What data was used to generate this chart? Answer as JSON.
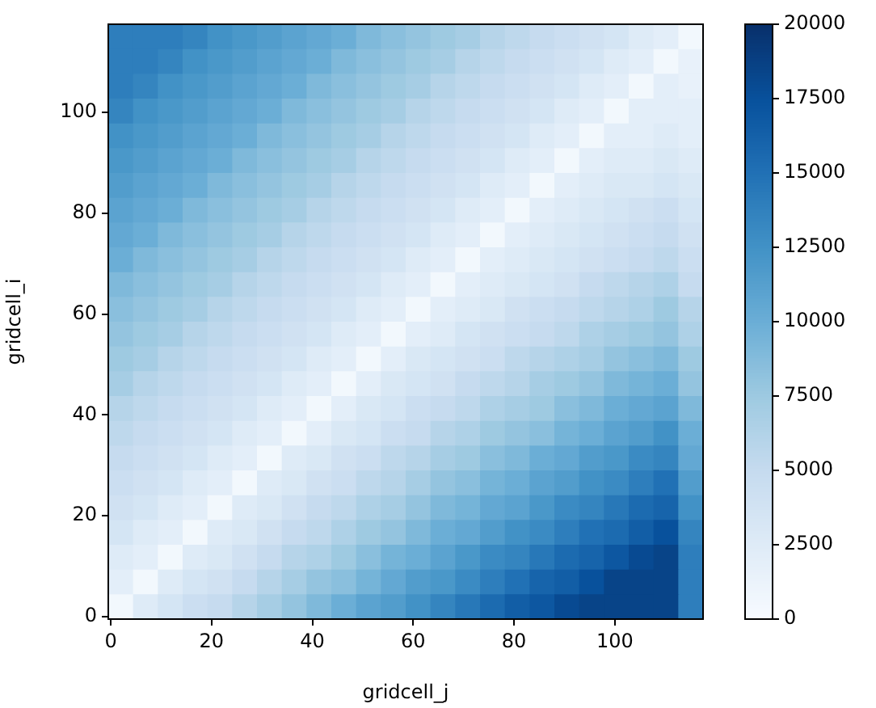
{
  "chart_data": {
    "type": "heatmap",
    "xlabel": "gridcell_j",
    "ylabel": "gridcell_i",
    "xlim": [
      -0.5,
      117.5
    ],
    "ylim": [
      -0.5,
      117.5
    ],
    "xticks": [
      0,
      20,
      40,
      60,
      80,
      100
    ],
    "yticks": [
      0,
      20,
      40,
      60,
      80,
      100
    ],
    "clim": [
      0,
      20000
    ],
    "cticks": [
      0,
      2500,
      5000,
      7500,
      10000,
      12500,
      15000,
      17500,
      20000
    ],
    "cells": [
      [
        14000,
        14000,
        14000,
        13500,
        12500,
        12000,
        11500,
        11000,
        10500,
        10000,
        9000,
        8500,
        8000,
        7500,
        7000,
        6000,
        5500,
        5000,
        4500,
        4000,
        3500,
        2500,
        2000,
        500
      ],
      [
        14000,
        14000,
        13500,
        12500,
        12000,
        11500,
        11000,
        10500,
        10000,
        9000,
        8500,
        8000,
        7500,
        7000,
        6000,
        5500,
        5000,
        4500,
        4000,
        3500,
        2500,
        2000,
        500,
        1500
      ],
      [
        14000,
        13500,
        12500,
        12000,
        11500,
        11000,
        10500,
        10000,
        9000,
        8500,
        8000,
        7500,
        7000,
        6000,
        5500,
        5000,
        4500,
        4000,
        3500,
        2500,
        2000,
        500,
        2000,
        1500
      ],
      [
        13500,
        12500,
        12000,
        11500,
        11000,
        10500,
        10000,
        9000,
        8500,
        8000,
        7500,
        7000,
        6000,
        5500,
        5000,
        4500,
        4000,
        3500,
        2500,
        2000,
        500,
        2000,
        2000,
        2000
      ],
      [
        12500,
        12000,
        11500,
        11000,
        10500,
        10000,
        9000,
        8500,
        8000,
        7500,
        7000,
        6000,
        5500,
        5000,
        4500,
        4000,
        3500,
        2500,
        2000,
        500,
        2000,
        2000,
        2500,
        2000
      ],
      [
        12000,
        11500,
        11000,
        10500,
        10000,
        9000,
        8500,
        8000,
        7500,
        7000,
        6000,
        5500,
        5000,
        4500,
        4000,
        3500,
        2500,
        2000,
        500,
        2000,
        2500,
        2500,
        3000,
        2500
      ],
      [
        11500,
        11000,
        10500,
        10000,
        9000,
        8500,
        8000,
        7500,
        7000,
        6000,
        5500,
        5000,
        4500,
        4000,
        3500,
        2500,
        2000,
        500,
        2000,
        2500,
        3000,
        3000,
        3500,
        3000
      ],
      [
        11000,
        10500,
        10000,
        9000,
        8500,
        8000,
        7500,
        7000,
        6000,
        5500,
        5000,
        4500,
        4000,
        3500,
        2500,
        2000,
        500,
        2000,
        2500,
        3000,
        3500,
        4000,
        4500,
        3500
      ],
      [
        10500,
        10000,
        9000,
        8500,
        8000,
        7500,
        7000,
        6000,
        5500,
        5000,
        4500,
        4000,
        3500,
        2500,
        2000,
        500,
        2000,
        2500,
        3000,
        3500,
        4000,
        4500,
        5000,
        4000
      ],
      [
        10000,
        9000,
        8500,
        8000,
        7500,
        7000,
        6000,
        5500,
        5000,
        4500,
        4000,
        3500,
        2500,
        2000,
        500,
        2000,
        2500,
        3000,
        3500,
        4000,
        4500,
        5000,
        5500,
        4500
      ],
      [
        9000,
        8500,
        8000,
        7500,
        7000,
        6000,
        5500,
        5000,
        4500,
        4000,
        3500,
        2500,
        2000,
        500,
        2000,
        2500,
        3000,
        3500,
        4000,
        5000,
        5500,
        6000,
        6500,
        5000
      ],
      [
        8500,
        8000,
        7500,
        7000,
        6000,
        5500,
        5000,
        4500,
        4000,
        3500,
        2500,
        2000,
        500,
        2000,
        2500,
        3000,
        4000,
        4500,
        5000,
        5500,
        6000,
        6500,
        7500,
        6000
      ],
      [
        8000,
        7500,
        7000,
        6000,
        5500,
        5000,
        4500,
        4000,
        3500,
        2500,
        2000,
        500,
        2000,
        2500,
        3500,
        4000,
        4500,
        5000,
        5500,
        6500,
        7000,
        7500,
        8000,
        6500
      ],
      [
        7500,
        7000,
        6000,
        5500,
        5000,
        4500,
        4000,
        3500,
        2500,
        2000,
        500,
        2000,
        3000,
        3500,
        4000,
        4500,
        5500,
        6000,
        6500,
        7000,
        8000,
        8500,
        9000,
        7500
      ],
      [
        7000,
        6000,
        5500,
        5000,
        4500,
        4000,
        3500,
        2500,
        2000,
        500,
        2000,
        3000,
        3500,
        4000,
        5000,
        5500,
        6000,
        7000,
        7500,
        8000,
        9000,
        9500,
        10000,
        8000
      ],
      [
        6000,
        5500,
        5000,
        4500,
        4000,
        3500,
        2500,
        2000,
        500,
        2000,
        3000,
        3500,
        4500,
        5000,
        5500,
        6500,
        7000,
        7500,
        8500,
        9000,
        10000,
        10500,
        11000,
        9000
      ],
      [
        5500,
        5000,
        4500,
        4000,
        3500,
        2500,
        2000,
        500,
        2000,
        3000,
        3500,
        4500,
        5000,
        6000,
        6500,
        7500,
        8000,
        8500,
        9500,
        10000,
        11000,
        11500,
        12500,
        10000
      ],
      [
        5000,
        4500,
        4000,
        3500,
        2500,
        2000,
        500,
        2500,
        3000,
        4000,
        4500,
        5500,
        6000,
        7000,
        7500,
        8500,
        9000,
        10000,
        10500,
        11500,
        12000,
        13000,
        13500,
        10500
      ],
      [
        4500,
        4000,
        3500,
        2500,
        2000,
        500,
        2500,
        3000,
        4000,
        4500,
        5500,
        6000,
        7000,
        8000,
        8500,
        9500,
        10000,
        11000,
        11500,
        12500,
        13000,
        14000,
        15000,
        11500
      ],
      [
        4000,
        3500,
        2500,
        2000,
        500,
        2500,
        3000,
        4000,
        5000,
        5500,
        6500,
        7000,
        8000,
        9000,
        9500,
        10500,
        11000,
        12000,
        13000,
        13500,
        14500,
        15500,
        16000,
        12500
      ],
      [
        3500,
        2500,
        2000,
        500,
        2500,
        3000,
        4000,
        5000,
        5500,
        6500,
        7500,
        8000,
        9000,
        10000,
        10500,
        11500,
        12500,
        13000,
        14000,
        15000,
        15500,
        16500,
        17500,
        13500
      ],
      [
        2500,
        2000,
        500,
        2500,
        3000,
        4000,
        5000,
        6000,
        6500,
        7500,
        8500,
        9500,
        10000,
        11000,
        12000,
        13000,
        13500,
        14500,
        15500,
        16000,
        17000,
        18000,
        18500,
        14000
      ],
      [
        2000,
        500,
        2500,
        3500,
        4000,
        5000,
        6000,
        7000,
        8000,
        8500,
        9500,
        10500,
        11500,
        12000,
        13000,
        14000,
        15000,
        16000,
        16500,
        17500,
        18500,
        18500,
        18500,
        14000
      ],
      [
        500,
        2500,
        3500,
        4500,
        5000,
        6000,
        7000,
        8000,
        9000,
        10000,
        11000,
        11500,
        12500,
        13500,
        14500,
        15500,
        16500,
        17000,
        18000,
        18500,
        18500,
        18500,
        18500,
        14000
      ]
    ]
  }
}
